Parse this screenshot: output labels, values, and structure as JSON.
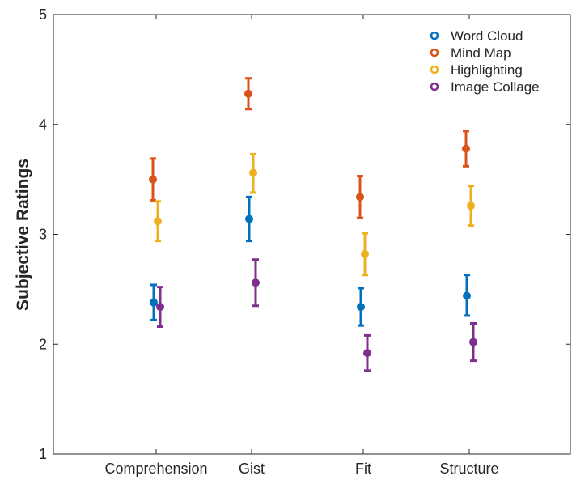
{
  "chart_data": {
    "type": "scatter",
    "title": "",
    "xlabel": "",
    "ylabel": "Subjective Ratings",
    "ylim": [
      1,
      5
    ],
    "yticks": [
      1,
      2,
      3,
      4,
      5
    ],
    "grid": false,
    "legend_position": "top-right",
    "categories": [
      "Comprehension",
      "Gist",
      "Fit",
      "Structure"
    ],
    "series": [
      {
        "name": "Word Cloud",
        "color": "#0072BD",
        "values": [
          2.38,
          3.14,
          2.34,
          2.44
        ],
        "lower": [
          2.22,
          2.94,
          2.17,
          2.26
        ],
        "upper": [
          2.54,
          3.34,
          2.51,
          2.63
        ]
      },
      {
        "name": "Mind Map",
        "color": "#D95319",
        "values": [
          3.5,
          4.28,
          3.34,
          3.78
        ],
        "lower": [
          3.31,
          4.14,
          3.15,
          3.62
        ],
        "upper": [
          3.69,
          4.42,
          3.53,
          3.94
        ]
      },
      {
        "name": "Highlighting",
        "color": "#EDB120",
        "values": [
          3.12,
          3.56,
          2.82,
          3.26
        ],
        "lower": [
          2.94,
          3.38,
          2.63,
          3.08
        ],
        "upper": [
          3.3,
          3.73,
          3.01,
          3.44
        ]
      },
      {
        "name": "Image Collage",
        "color": "#7E2F8E",
        "values": [
          2.34,
          2.56,
          1.92,
          2.02
        ],
        "lower": [
          2.16,
          2.35,
          1.76,
          1.85
        ],
        "upper": [
          2.52,
          2.77,
          2.08,
          2.19
        ]
      }
    ]
  }
}
